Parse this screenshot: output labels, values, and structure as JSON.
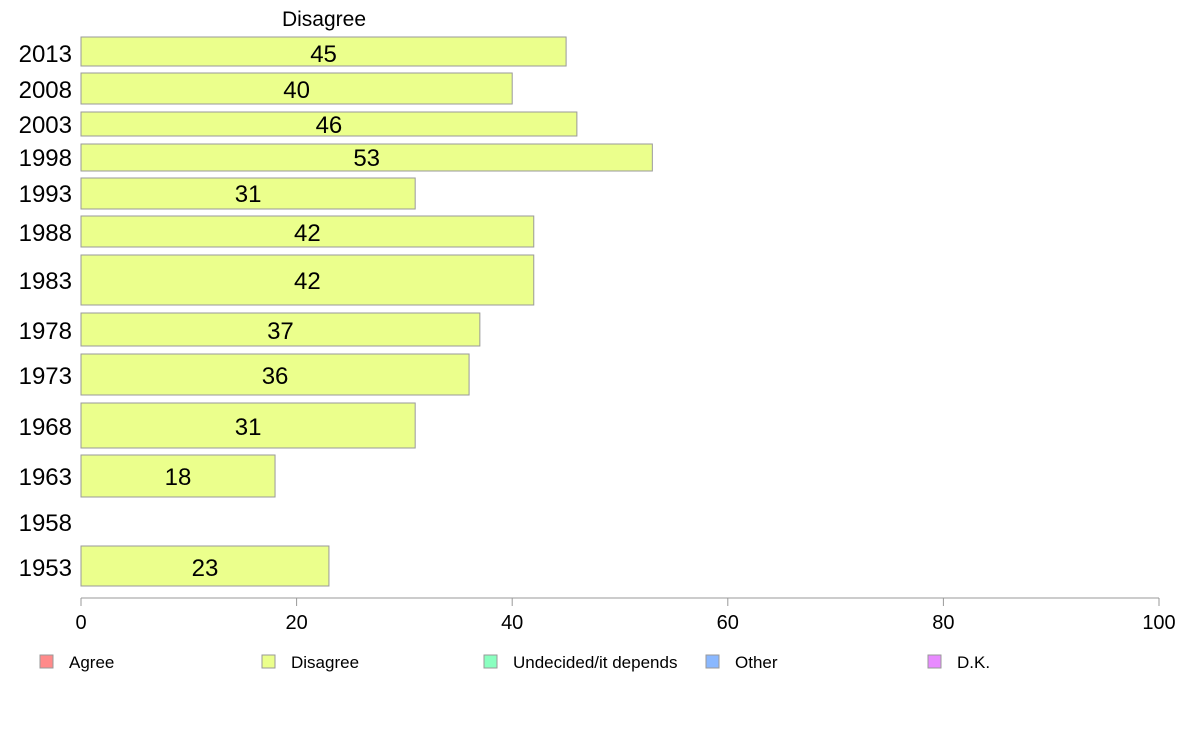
{
  "chart_data": {
    "type": "bar",
    "orientation": "horizontal",
    "title": "Disagree",
    "categories": [
      "2013",
      "2008",
      "2003",
      "1998",
      "1993",
      "1988",
      "1983",
      "1978",
      "1973",
      "1968",
      "1963",
      "1958",
      "1953"
    ],
    "values": [
      45,
      40,
      46,
      53,
      31,
      42,
      42,
      37,
      36,
      31,
      18,
      null,
      23
    ],
    "data_labels": [
      "45",
      "40",
      "46",
      "53",
      "31",
      "42",
      "42",
      "37",
      "36",
      "31",
      "18",
      "",
      "23"
    ],
    "xlim": [
      0,
      100
    ],
    "xticks": [
      "0",
      "20",
      "40",
      "60",
      "80",
      "100"
    ],
    "grid": false,
    "bar_color": "#ebff8c",
    "legend_position": "bottom",
    "legend": [
      {
        "label": "Agree",
        "color": "#ff8a8a"
      },
      {
        "label": "Disagree",
        "color": "#ebff8c"
      },
      {
        "label": "Undecided/it depends",
        "color": "#8affc0"
      },
      {
        "label": "Other",
        "color": "#8ab8ff"
      },
      {
        "label": "D.K.",
        "color": "#e88aff"
      }
    ]
  }
}
